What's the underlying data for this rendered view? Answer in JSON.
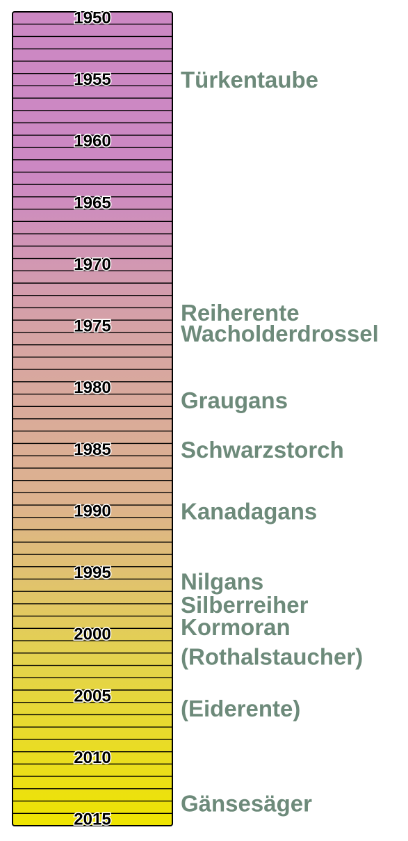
{
  "timeline": {
    "start_year": 1950,
    "end_year": 2016,
    "bar_colors": [
      "#cc88c3",
      "#cc88c3",
      "#d6a4a4",
      "#ddb28e",
      "#e4d34c",
      "#eee400"
    ],
    "label_color": "#6d8a7a",
    "year_labels": [
      "1950",
      "1955",
      "1960",
      "1965",
      "1970",
      "1975",
      "1980",
      "1985",
      "1990",
      "1995",
      "2000",
      "2005",
      "2010",
      "2015"
    ],
    "species": [
      {
        "name": "Türkentaube",
        "year": 1955.0
      },
      {
        "name": "Reiherente",
        "year": 1973.9
      },
      {
        "name": "Wacholderdrossel",
        "year": 1975.6
      },
      {
        "name": "Graugans",
        "year": 1981.0
      },
      {
        "name": "Schwarzstorch",
        "year": 1985.0
      },
      {
        "name": "Kanadagans",
        "year": 1990.0
      },
      {
        "name": "Nilgans",
        "year": 1995.7
      },
      {
        "name": "Silberreiher",
        "year": 1997.6
      },
      {
        "name": "Kormoran",
        "year": 1999.4
      },
      {
        "name": "(Rothalstaucher)",
        "year": 2001.8
      },
      {
        "name": "(Eiderente)",
        "year": 2006.0
      },
      {
        "name": "Gänsesäger",
        "year": 2013.7
      }
    ]
  }
}
